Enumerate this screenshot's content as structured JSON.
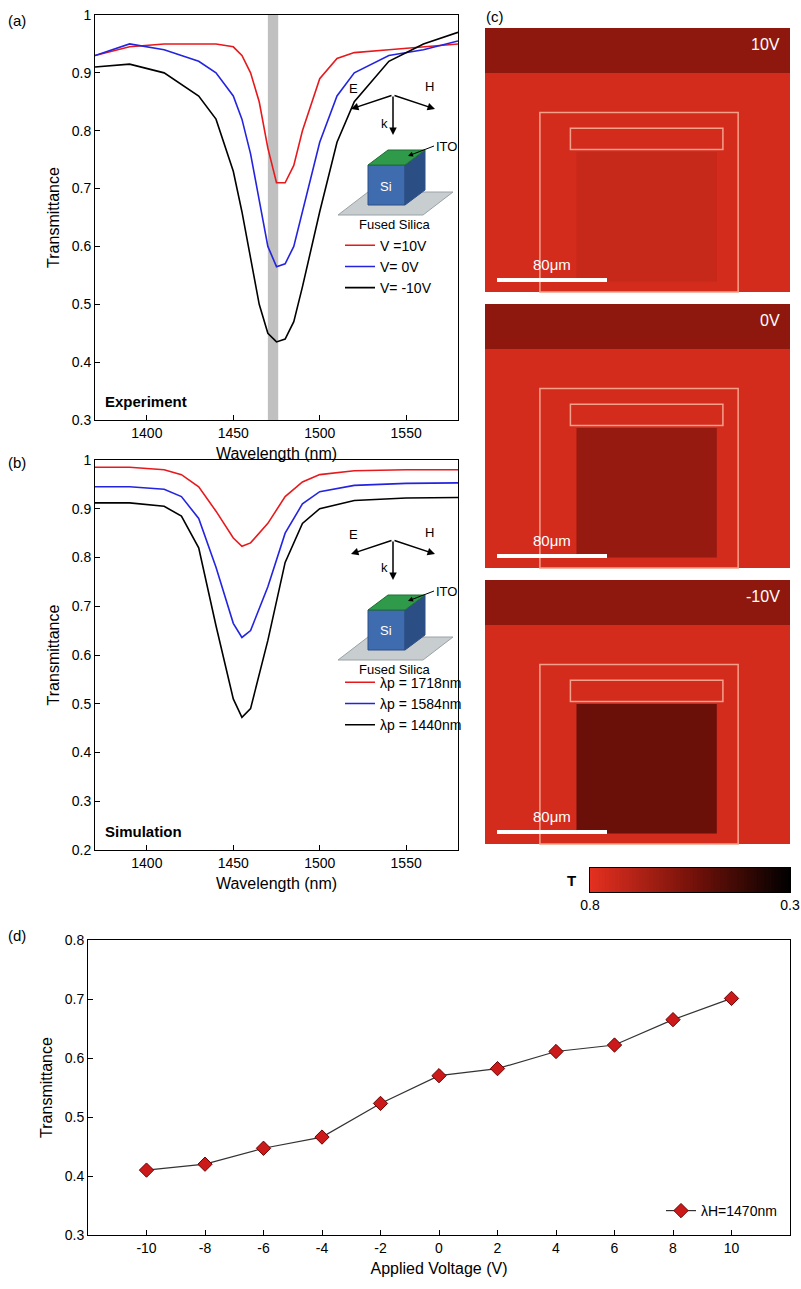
{
  "chart_data": [
    {
      "panel": "(a)",
      "type": "line",
      "x_label": "Wavelength (nm)",
      "y_label": "Transmittance",
      "annotations": [
        "Experiment"
      ],
      "inset_labels": [
        "E",
        "H",
        "k",
        "ITO",
        "Si",
        "Fused Silica"
      ],
      "highlight": [
        1470,
        1476
      ],
      "xlim": [
        1370,
        1580
      ],
      "xticks": [
        1400,
        1450,
        1500,
        1550
      ],
      "ylim": [
        0.3,
        1
      ],
      "yticks": [
        0.3,
        0.4,
        0.5,
        0.6,
        0.7,
        0.8,
        0.9,
        1
      ],
      "legend": "right",
      "grid": false,
      "x": [
        1370,
        1390,
        1410,
        1430,
        1440,
        1450,
        1455,
        1460,
        1465,
        1470,
        1475,
        1480,
        1485,
        1490,
        1500,
        1510,
        1520,
        1540,
        1560,
        1580
      ],
      "series": [
        {
          "name": "V =10V",
          "color": "#e8191c",
          "values": [
            0.93,
            0.945,
            0.95,
            0.95,
            0.95,
            0.945,
            0.93,
            0.9,
            0.85,
            0.77,
            0.71,
            0.71,
            0.74,
            0.8,
            0.89,
            0.925,
            0.935,
            0.94,
            0.945,
            0.95
          ]
        },
        {
          "name": "V= 0V",
          "color": "#2424e0",
          "values": [
            0.93,
            0.95,
            0.94,
            0.92,
            0.9,
            0.86,
            0.82,
            0.76,
            0.68,
            0.6,
            0.565,
            0.57,
            0.6,
            0.66,
            0.78,
            0.86,
            0.9,
            0.93,
            0.94,
            0.955
          ]
        },
        {
          "name": "V= -10V",
          "color": "#000000",
          "values": [
            0.91,
            0.915,
            0.9,
            0.86,
            0.82,
            0.73,
            0.66,
            0.58,
            0.5,
            0.45,
            0.435,
            0.44,
            0.47,
            0.53,
            0.66,
            0.78,
            0.85,
            0.92,
            0.95,
            0.97
          ]
        }
      ]
    },
    {
      "panel": "(b)",
      "type": "line",
      "x_label": "Wavelength (nm)",
      "y_label": "Transmittance",
      "annotations": [
        "Simulation"
      ],
      "inset_labels": [
        "E",
        "H",
        "k",
        "ITO",
        "Si",
        "Fused Silica"
      ],
      "xlim": [
        1370,
        1580
      ],
      "xticks": [
        1400,
        1450,
        1500,
        1550
      ],
      "ylim": [
        0.2,
        1
      ],
      "yticks": [
        0.2,
        0.3,
        0.4,
        0.5,
        0.6,
        0.7,
        0.8,
        0.9,
        1
      ],
      "legend": "right",
      "grid": false,
      "x": [
        1370,
        1390,
        1410,
        1420,
        1430,
        1440,
        1450,
        1455,
        1460,
        1470,
        1480,
        1490,
        1500,
        1520,
        1550,
        1580
      ],
      "series": [
        {
          "name": "λp = 1718nm",
          "color": "#e8191c",
          "values": [
            0.985,
            0.985,
            0.98,
            0.97,
            0.945,
            0.895,
            0.84,
            0.823,
            0.83,
            0.87,
            0.925,
            0.955,
            0.97,
            0.978,
            0.98,
            0.98
          ]
        },
        {
          "name": "λp = 1584nm",
          "color": "#2424e0",
          "values": [
            0.945,
            0.945,
            0.94,
            0.925,
            0.88,
            0.78,
            0.665,
            0.636,
            0.65,
            0.74,
            0.85,
            0.91,
            0.935,
            0.948,
            0.952,
            0.953
          ]
        },
        {
          "name": "λp = 1440nm",
          "color": "#000000",
          "values": [
            0.912,
            0.912,
            0.905,
            0.885,
            0.82,
            0.66,
            0.51,
            0.472,
            0.49,
            0.63,
            0.79,
            0.87,
            0.9,
            0.917,
            0.922,
            0.923
          ]
        }
      ]
    },
    {
      "panel": "(d)",
      "type": "line",
      "x_label": "Applied Voltage (V)",
      "y_label": "Transmittance",
      "xlim": [
        -12,
        12
      ],
      "xticks": [
        -10,
        -8,
        -6,
        -4,
        -2,
        0,
        2,
        4,
        6,
        8,
        10
      ],
      "ylim": [
        0.3,
        0.8
      ],
      "yticks": [
        0.3,
        0.4,
        0.5,
        0.6,
        0.7,
        0.8
      ],
      "legend": "lower right",
      "grid": false,
      "marker": "diamond",
      "line_style": "solid",
      "x": [
        -10,
        -8,
        -6,
        -4,
        -2,
        0,
        2,
        4,
        6,
        8,
        10
      ],
      "series": [
        {
          "name": "λH=1470nm",
          "color": "#cc1a1a",
          "values": [
            0.41,
            0.42,
            0.447,
            0.466,
            0.523,
            0.57,
            0.582,
            0.611,
            0.622,
            0.665,
            0.701
          ]
        }
      ]
    }
  ],
  "panel_c": {
    "panel": "(c)",
    "scale_bar": "80μm",
    "background_T": 0.76,
    "top_band_T": 0.6,
    "images": [
      {
        "label": "10V",
        "device_T": 0.73
      },
      {
        "label": "0V",
        "device_T": 0.62
      },
      {
        "label": "-10V",
        "device_T": 0.52
      }
    ],
    "colorbar": {
      "label": "T",
      "range": [
        0.8,
        0.3
      ],
      "ticks": [
        0.8,
        0.3
      ]
    }
  }
}
